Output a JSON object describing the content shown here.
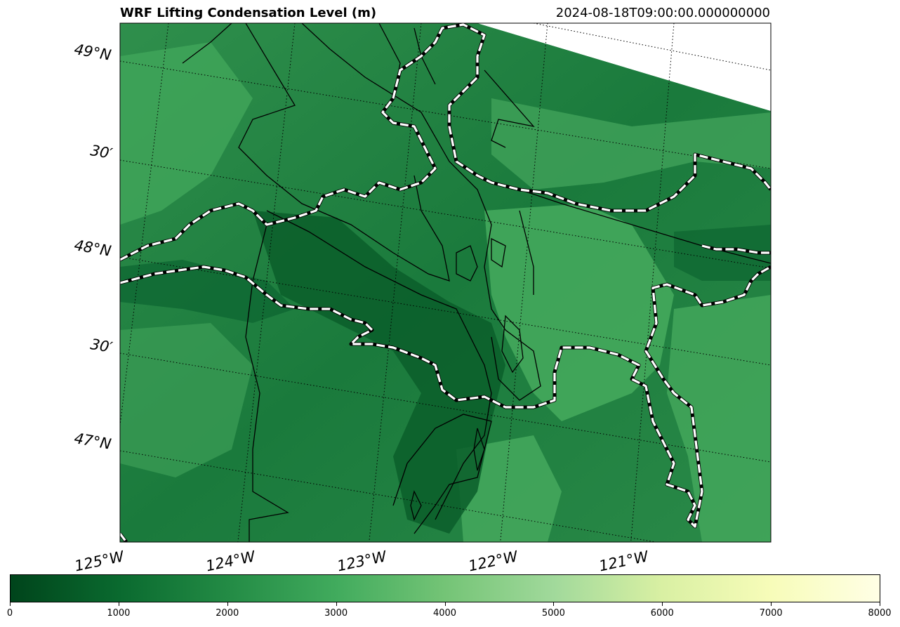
{
  "title": "WRF Lifting Condensation Level (m)",
  "timestamp": "2024-08-18T09:00:00.000000000",
  "lat_labels": [
    "49°N",
    "30′",
    "48°N",
    "30′",
    "47°N"
  ],
  "lon_labels": [
    "125°W",
    "124°W",
    "123°W",
    "122°W",
    "121°W"
  ],
  "colorbar": {
    "colormap": "Greens_r",
    "ticks": [
      "0",
      "1000",
      "2000",
      "3000",
      "4000",
      "5000",
      "6000",
      "7000",
      "8000"
    ],
    "range": [
      0,
      8000
    ]
  },
  "colors": {
    "dark_green": "#00441b",
    "mid_green": "#238b45",
    "light_green": "#41ab5d",
    "contour": "#000000",
    "coastline_dash": "#ffffff"
  }
}
